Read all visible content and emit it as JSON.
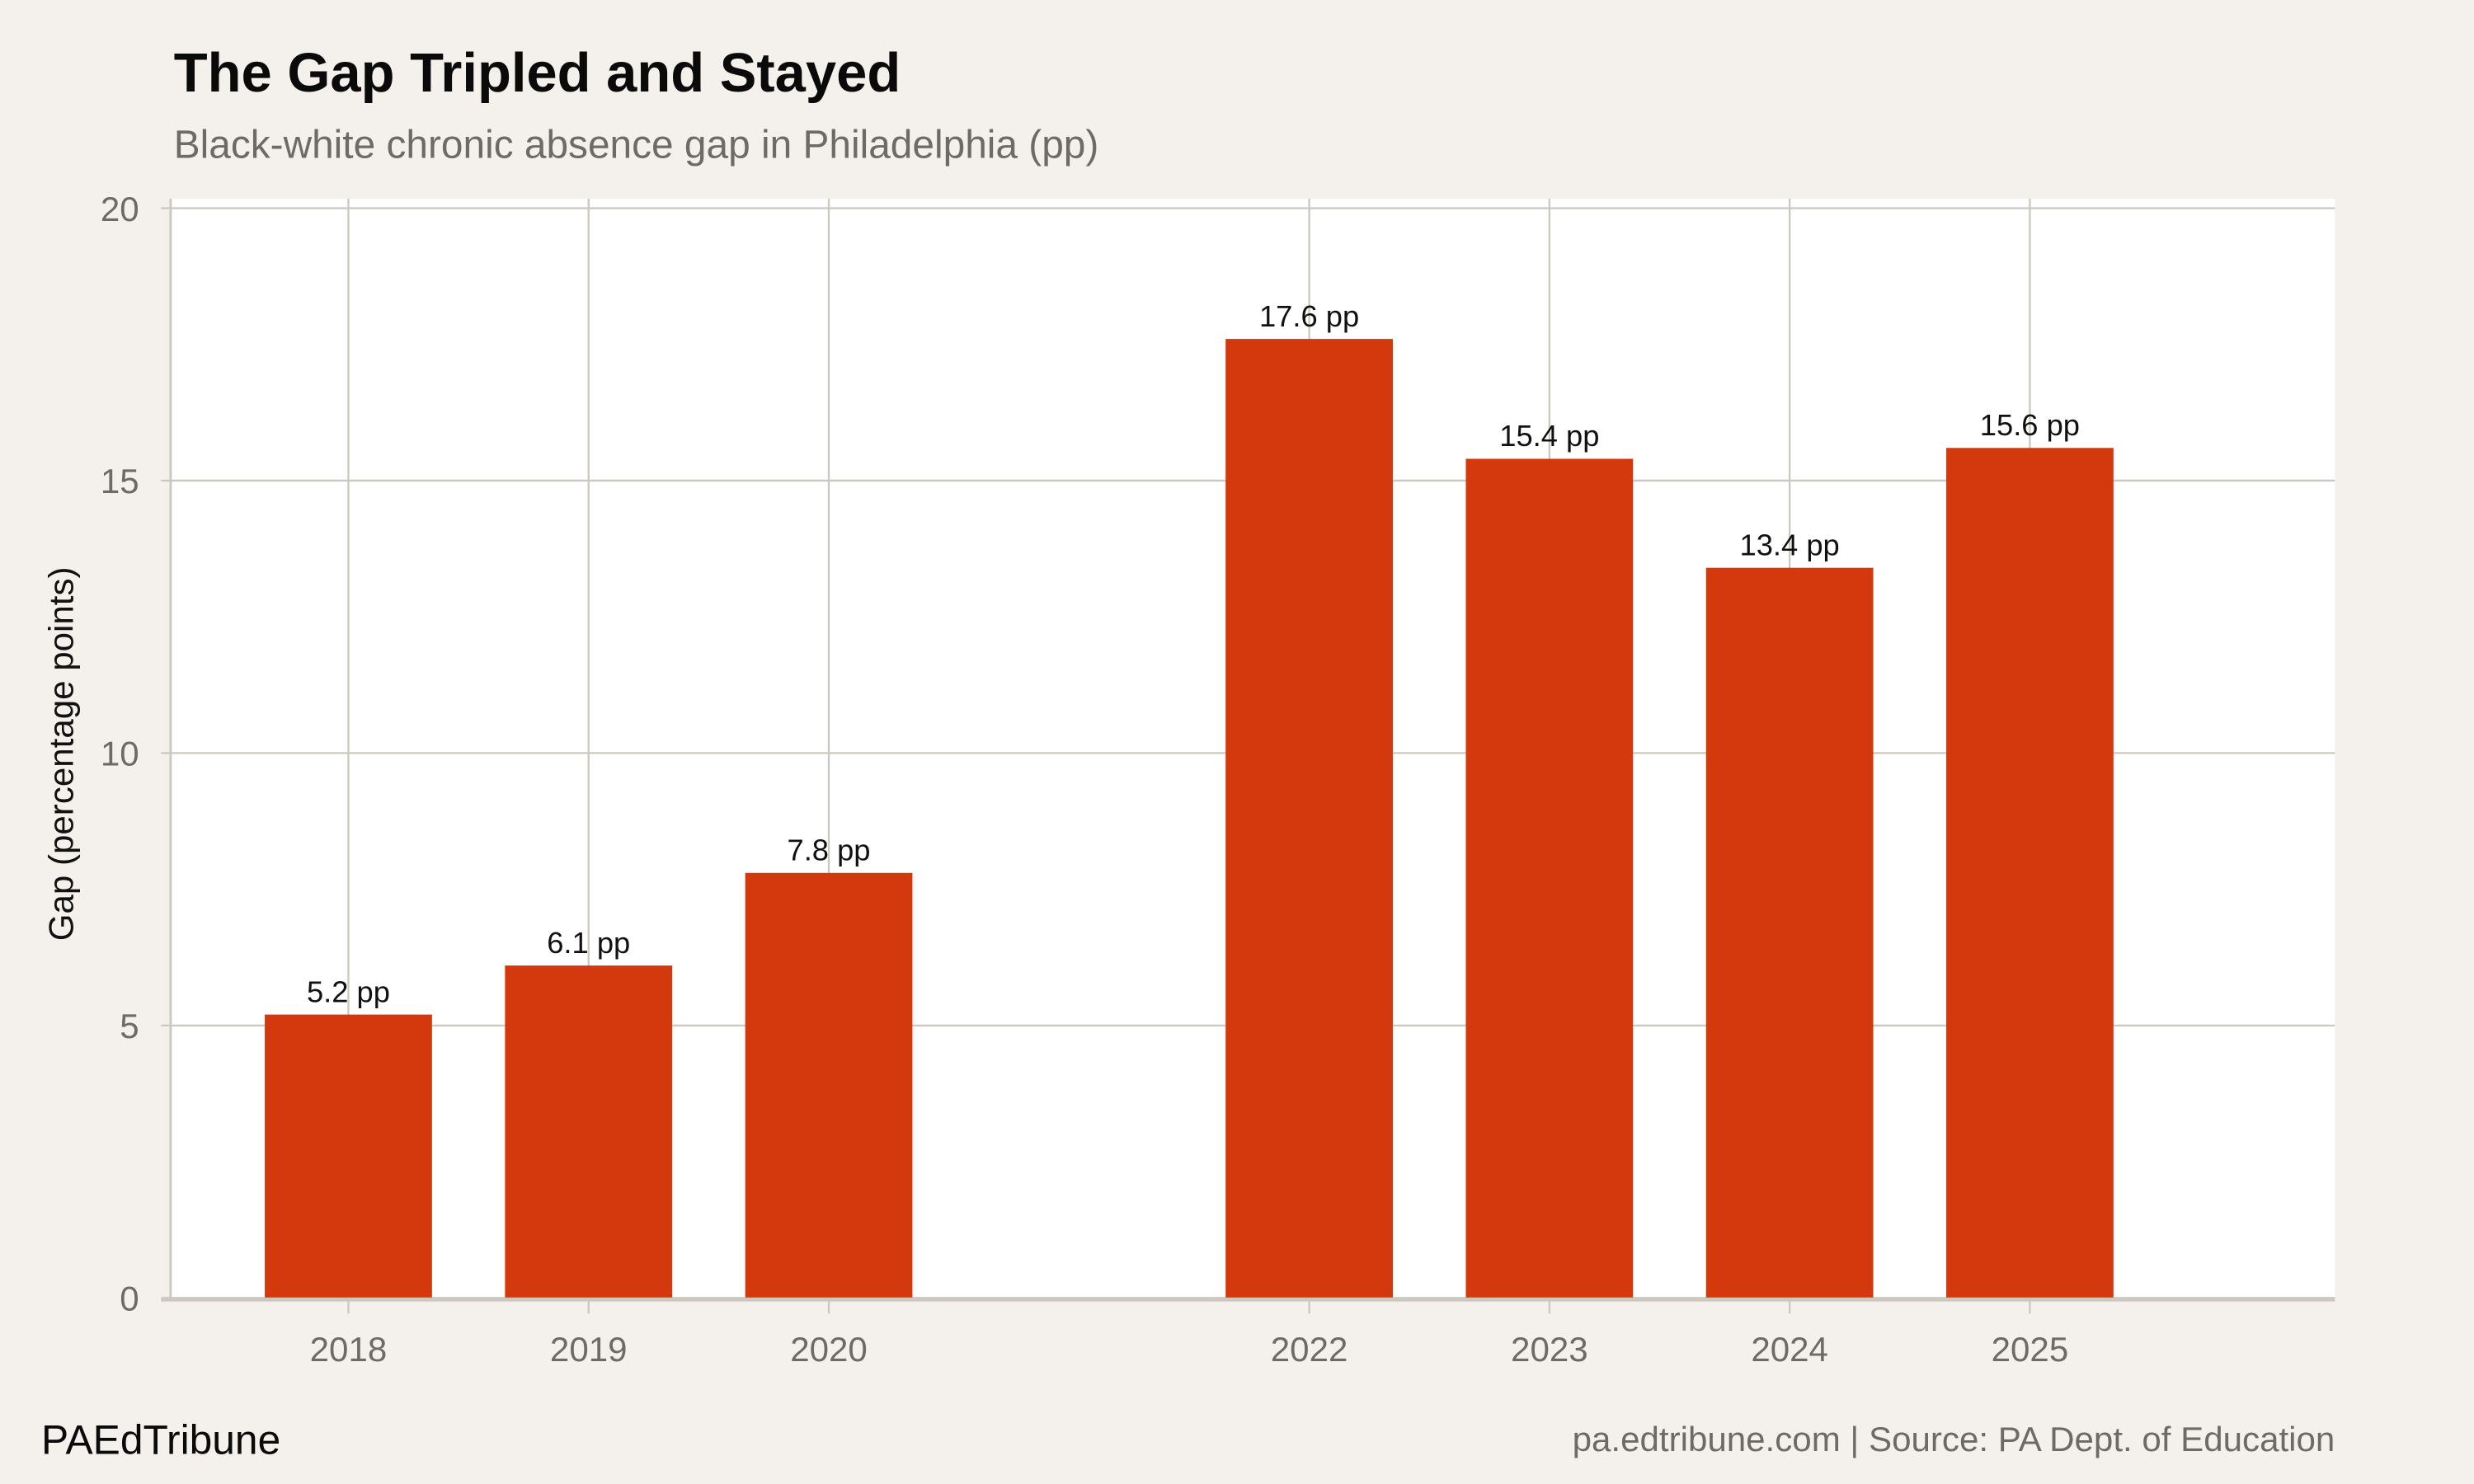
{
  "title": "The Gap Tripled and Stayed",
  "subtitle": "Black-white chronic absence gap in Philadelphia (pp)",
  "footer": {
    "brand": "PAEdTribune",
    "source": "pa.edtribune.com | Source: PA Dept. of Education"
  },
  "colors": {
    "bar": "#d4380d",
    "background": "#f4f1ec",
    "panel": "#ffffff",
    "grid": "#ccc8bf"
  },
  "chart_data": {
    "type": "bar",
    "title": "The Gap Tripled and Stayed",
    "subtitle": "Black-white chronic absence gap in Philadelphia (pp)",
    "xlabel": "",
    "ylabel": "Gap (percentage points)",
    "categories": [
      2018,
      2019,
      2020,
      2022,
      2023,
      2024,
      2025
    ],
    "values": [
      5.2,
      6.1,
      7.8,
      17.6,
      15.4,
      13.4,
      15.6
    ],
    "data_labels": [
      "5.2 pp",
      "6.1 pp",
      "7.8 pp",
      "17.6 pp",
      "15.4 pp",
      "13.4 pp",
      "15.6 pp"
    ],
    "ylim": [
      0,
      20
    ],
    "yticks": [
      0,
      5,
      10,
      15,
      20
    ],
    "xticks": [
      "2018",
      "2019",
      "2020",
      "2022",
      "2023",
      "2024",
      "2025"
    ],
    "grid": true,
    "legend": "none"
  }
}
